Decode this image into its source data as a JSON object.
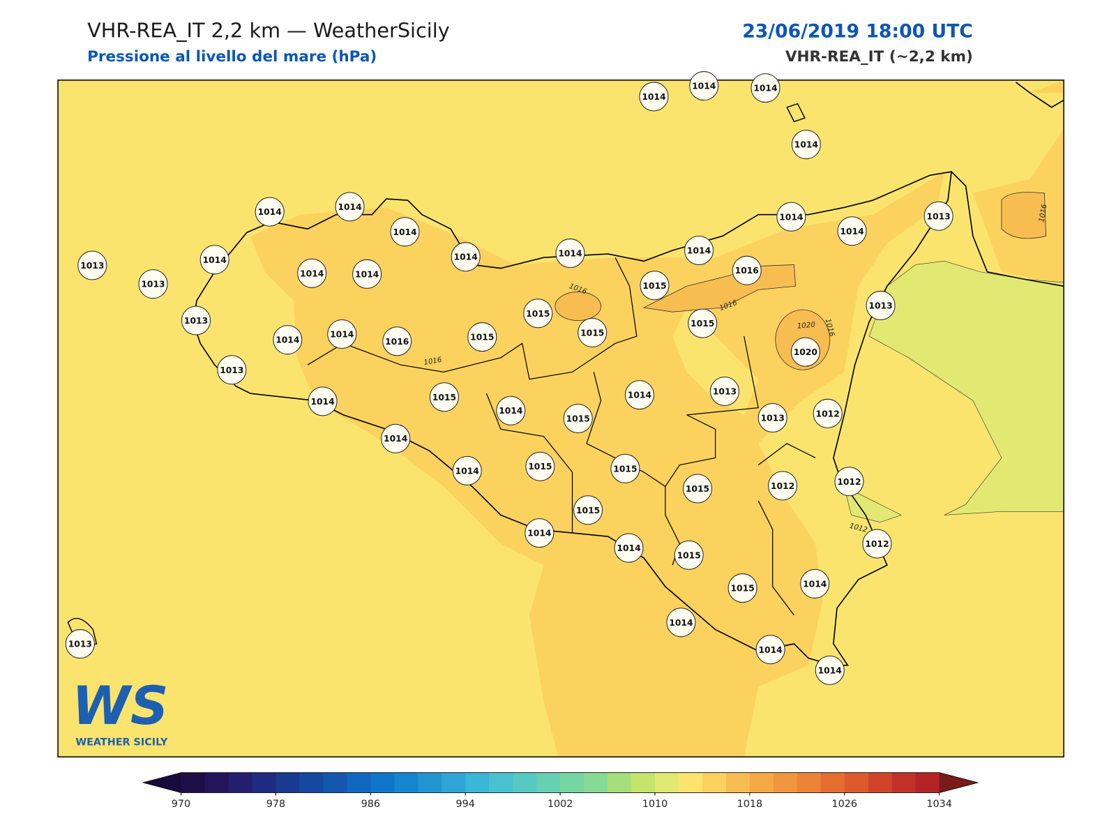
{
  "header": {
    "title": "VHR-REA_IT 2,2 km — WeatherSicily",
    "subtitle": "Pressione al livello del mare (hPa)",
    "datetime": "23/06/2019 18:00 UTC",
    "model": "VHR-REA_IT (~2,2 km)"
  },
  "stations": [
    {
      "value": 1014
    },
    {
      "value": 1014
    },
    {
      "value": 1014
    },
    {
      "value": 1014
    },
    {
      "value": 1014
    },
    {
      "value": 1014
    },
    {
      "value": 1014
    },
    {
      "value": 1014
    },
    {
      "value": 1014
    },
    {
      "value": 1014
    },
    {
      "value": 1014
    },
    {
      "value": 1014
    },
    {
      "value": 1013
    },
    {
      "value": 1013
    },
    {
      "value": 1014
    },
    {
      "value": 1013
    },
    {
      "value": 1014
    },
    {
      "value": 1014
    },
    {
      "value": 1016
    },
    {
      "value": 1015
    },
    {
      "value": 1013
    },
    {
      "value": 1015
    },
    {
      "value": 1013
    },
    {
      "value": 1015
    },
    {
      "value": 1015
    },
    {
      "value": 1014
    },
    {
      "value": 1014
    },
    {
      "value": 1016
    },
    {
      "value": 1015
    },
    {
      "value": 1020
    },
    {
      "value": 1013
    },
    {
      "value": 1013
    },
    {
      "value": 1014
    },
    {
      "value": 1014
    },
    {
      "value": 1015
    },
    {
      "value": 1013
    },
    {
      "value": 1012
    },
    {
      "value": 1014
    },
    {
      "value": 1015
    },
    {
      "value": 1014
    },
    {
      "value": 1014
    },
    {
      "value": 1015
    },
    {
      "value": 1015
    },
    {
      "value": 1015
    },
    {
      "value": 1012
    },
    {
      "value": 1012
    },
    {
      "value": 1015
    },
    {
      "value": 1014
    },
    {
      "value": 1014
    },
    {
      "value": 1015
    },
    {
      "value": 1012
    },
    {
      "value": 1015
    },
    {
      "value": 1014
    },
    {
      "value": 1014
    },
    {
      "value": 1014
    },
    {
      "value": 1014
    },
    {
      "value": 1013
    }
  ],
  "contour_labels": [
    {
      "value": 1016
    },
    {
      "value": 1016
    },
    {
      "value": 1016
    },
    {
      "value": 1020
    },
    {
      "value": 1016
    },
    {
      "value": 1016
    },
    {
      "value": 1012
    }
  ],
  "colorbar": {
    "ticks": [
      970,
      978,
      986,
      994,
      1002,
      1010,
      1018,
      1026,
      1034
    ],
    "colors": [
      "#1e0f46",
      "#24155a",
      "#231e6d",
      "#1d2b80",
      "#183a90",
      "#15489f",
      "#1357ae",
      "#0f67bf",
      "#0d76c9",
      "#1585cf",
      "#2295d3",
      "#2ea5d6",
      "#3ab6d6",
      "#49c2cf",
      "#56cac2",
      "#64d1b4",
      "#75d6a4",
      "#87da93",
      "#a6de79",
      "#c4e46b",
      "#e2e972",
      "#fbe46e",
      "#fcd25e",
      "#f8bd51",
      "#f4a846",
      "#f0963e",
      "#ec8436",
      "#e56d30",
      "#dc5a2c",
      "#d04529",
      "#c33128",
      "#b42326"
    ],
    "under_color": "#180a3a",
    "over_color": "#7a1a1a"
  },
  "logo": {
    "text": "WEATHER SICILY"
  }
}
